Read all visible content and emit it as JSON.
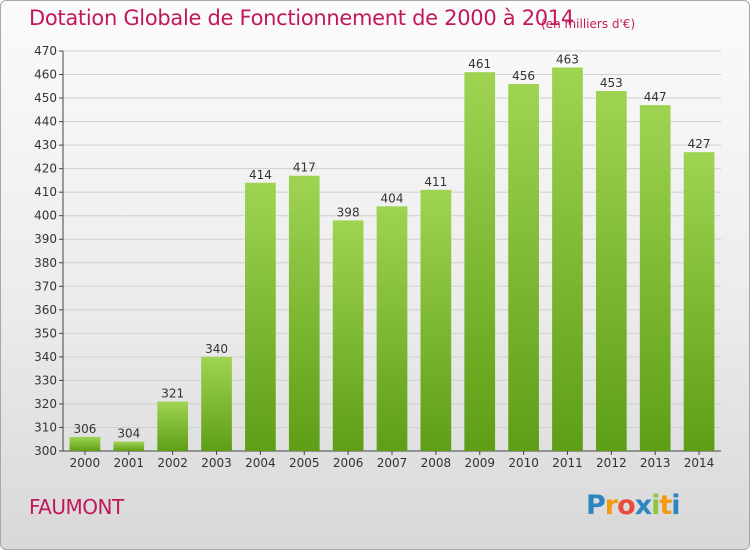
{
  "chart_data": {
    "type": "bar",
    "title": "Dotation Globale de Fonctionnement de 2000 à 2014",
    "unit_label": "(en milliers d'€)",
    "categories": [
      "2000",
      "2001",
      "2002",
      "2003",
      "2004",
      "2005",
      "2006",
      "2007",
      "2008",
      "2009",
      "2010",
      "2011",
      "2012",
      "2013",
      "2014"
    ],
    "values": [
      306,
      304,
      321,
      340,
      414,
      417,
      398,
      404,
      411,
      461,
      456,
      463,
      453,
      447,
      427
    ],
    "ylim": [
      300,
      470
    ],
    "ytick_step": 10,
    "grid": true,
    "bar_color": "#7ab72e"
  },
  "commune": "FAUMONT",
  "logo": {
    "letters": [
      "P",
      "r",
      "o",
      "x",
      "i",
      "t",
      "i"
    ],
    "colors": [
      "#2e86c1",
      "#f39c12",
      "#e74c3c",
      "#2e86c1",
      "#8cc63f",
      "#f39c12",
      "#2e86c1"
    ]
  }
}
